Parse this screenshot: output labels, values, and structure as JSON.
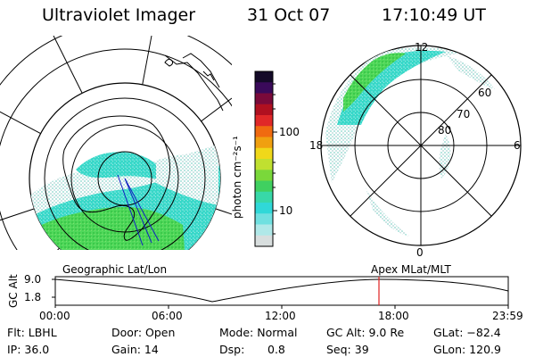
{
  "header": {
    "instrument": "Ultraviolet Imager",
    "date": "31 Oct 07",
    "time": "17:10:49 UT"
  },
  "colorbar": {
    "unit_label": "photon cm⁻²s⁻¹",
    "ticks": [
      "100",
      "10"
    ],
    "colors": [
      "#140a28",
      "#3a0a5a",
      "#7a0a3a",
      "#b01020",
      "#e02828",
      "#f06a10",
      "#f0a010",
      "#f0d81a",
      "#c0e030",
      "#7ad83a",
      "#40d060",
      "#38d8a8",
      "#30d8d8",
      "#70e0e0",
      "#b0e8e8",
      "#d8dede"
    ]
  },
  "polar_right": {
    "clock_labels": {
      "top": "12",
      "right": "6",
      "bottom": "0",
      "left": "18"
    },
    "lat_labels": [
      "60",
      "70",
      "80"
    ]
  },
  "timeline": {
    "left_title": "Geographic Lat/Lon",
    "right_title": "Apex MLat/MLT",
    "y_axis_title": "GC Alt",
    "y_ticks": [
      "9.0",
      "1.8"
    ],
    "x_ticks": [
      "00:00",
      "06:00",
      "12:00",
      "18:00",
      "23:59"
    ]
  },
  "status": {
    "filter": "Flt: LBHL",
    "ip": "IP: 36.0",
    "door": "Door: Open",
    "gain": "Gain: 14",
    "mode": "Mode: Normal",
    "dsp_label": "Dsp:",
    "dsp_value": "0.8",
    "gc_alt": "GC Alt: 9.0 Re",
    "seq": "Seq: 39",
    "glat": "GLat: −82.4",
    "glon": "GLon: 120.9"
  },
  "colors": {
    "aurora_green": "#4fd85a",
    "aurora_cyan": "#30d8d8",
    "aurora_pale": "#c8e4e4",
    "current_time_marker": "#e02020"
  }
}
